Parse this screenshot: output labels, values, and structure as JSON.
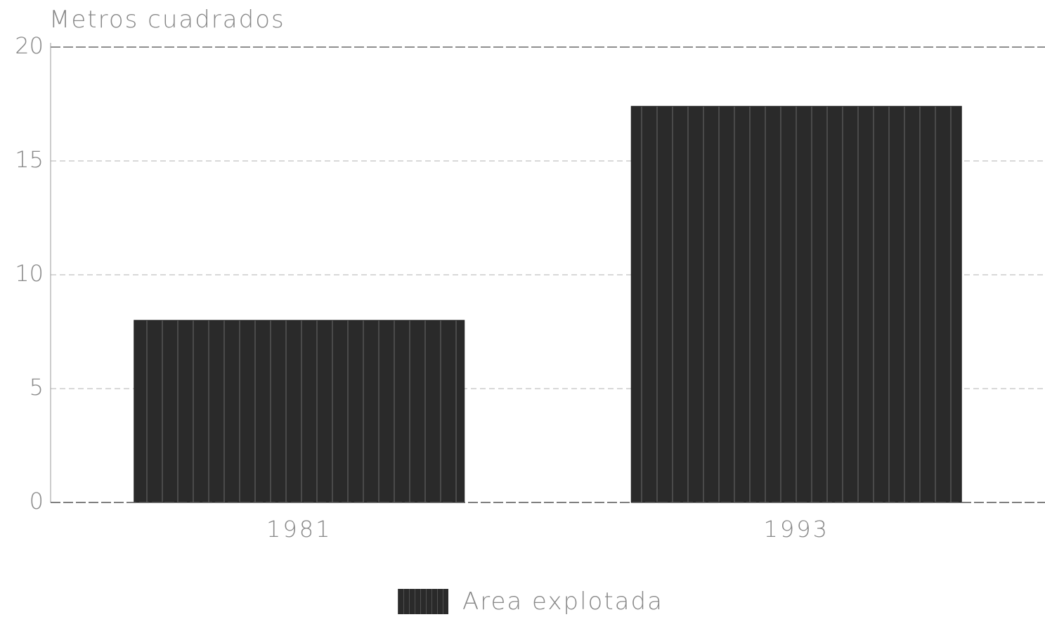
{
  "chart_data": {
    "type": "bar",
    "ylabel": "Metros cuadrados",
    "categories": [
      "1981",
      "1993"
    ],
    "series": [
      {
        "name": "Area explotada",
        "values": [
          8.0,
          17.4
        ],
        "color": "#2a2a2a"
      }
    ],
    "ylim": [
      0,
      20
    ],
    "yticks": [
      "0",
      "5",
      "10",
      "15",
      "20"
    ],
    "grid": true,
    "legend_position": "bottom-center"
  }
}
